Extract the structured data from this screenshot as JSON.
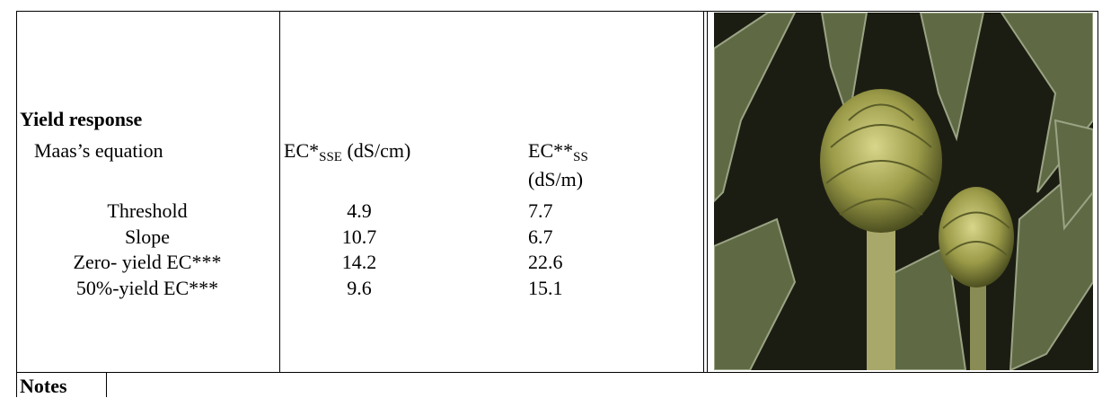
{
  "table": {
    "section_title": "Yield response",
    "header": {
      "label": "Maas’s equation",
      "col1": {
        "base": "EC*",
        "sub": "SSE",
        "unit": " (dS/cm)"
      },
      "col2": {
        "base": "EC**",
        "sub": "SS",
        "unit": "(dS/m)"
      }
    },
    "rows": [
      [
        "Threshold",
        4.9,
        7.7
      ],
      [
        "Slope",
        10.7,
        6.7
      ],
      [
        "Zero- yield EC***",
        14.2,
        22.6
      ],
      [
        "50%-yield EC***",
        9.6,
        15.1
      ]
    ],
    "notes_label": "Notes"
  }
}
